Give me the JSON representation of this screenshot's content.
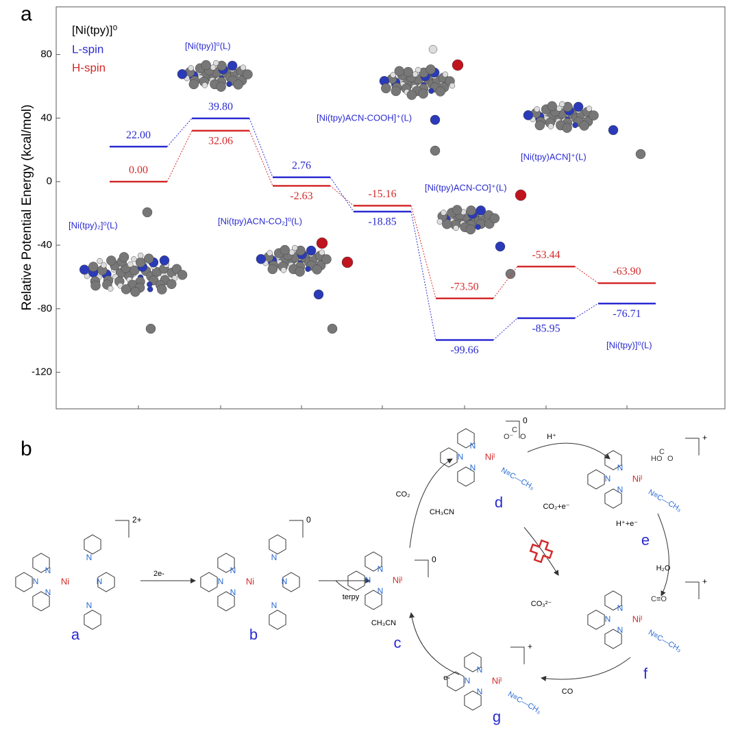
{
  "panel_labels": [
    "a",
    "b"
  ],
  "chart_data": {
    "type": "energy",
    "ylabel": "Relative Potential Energy (kcal/mol)",
    "ylim": [
      -143,
      110
    ],
    "yticks": [
      80,
      40,
      0,
      -40,
      -80,
      -120
    ],
    "categories": [
      null,
      null,
      null,
      null,
      null,
      null,
      null
    ],
    "legend_title": "[Ni(tpy)]⁰",
    "series": [
      {
        "name": "L-spin",
        "color": "#2a2ad2",
        "values": [
          22.0,
          39.8,
          2.76,
          -18.85,
          -99.66,
          -85.95,
          -76.71
        ],
        "value_labels": [
          "22.00",
          "39.80",
          "2.76",
          "-18.85",
          "-99.66",
          "-85.95",
          "-76.71"
        ]
      },
      {
        "name": "H-spin",
        "color": "#d42a2a",
        "values": [
          0.0,
          32.06,
          -2.63,
          -15.16,
          -73.5,
          -53.44,
          -63.9
        ],
        "value_labels": [
          "0.00",
          "32.06",
          "-2.63",
          "-15.16",
          "-73.50",
          "-53.44",
          "-63.90"
        ]
      }
    ],
    "annotations": [
      "[Ni(tpy)]⁰(L)",
      "[Ni(tpy)ACN-COOH]⁺(L)",
      "[Ni(tpy)ACN]⁺(L)",
      "[Ni(tpy)ACN-CO]⁺(L)",
      "[Ni(tpy)₂]⁰(L)",
      "[Ni(tpy)ACN-CO₂]⁰(L)",
      "[Ni(tpy)]⁰(L)"
    ]
  },
  "scheme": {
    "atom_label": "N",
    "structures": [
      {
        "label": "a",
        "charge": "2+",
        "metal": "Ni",
        "ligands": []
      },
      {
        "label": "b",
        "charge": "0",
        "metal": "Ni",
        "ligands": []
      },
      {
        "label": "c",
        "charge": "0",
        "metal": "Niᴵ",
        "ligands": []
      },
      {
        "label": "d",
        "charge": "0",
        "metal": "Niᴵ",
        "ligands": [
          "O⁻",
          "C",
          "O",
          "N≡C—CH₃"
        ]
      },
      {
        "label": "e",
        "charge": "+",
        "metal": "Niᴵ",
        "ligands": [
          "HO",
          "C",
          "O",
          "N≡C—CH₃"
        ]
      },
      {
        "label": "f",
        "charge": "+",
        "metal": "Niᴵ",
        "ligands": [
          "C≡O",
          "N≡C—CH₃"
        ]
      },
      {
        "label": "g",
        "charge": "+",
        "metal": "Niᴵ",
        "ligands": [
          "N≡C—CH₃"
        ]
      }
    ],
    "reaction_labels": [
      "2e-",
      "terpy",
      "CO₂",
      "CH₃CN",
      "H⁺",
      "H⁺+e⁻",
      "H₂O",
      "CO₂+e⁻",
      "CO₃²⁻",
      "CO",
      "e-",
      "CH₃CN"
    ]
  }
}
